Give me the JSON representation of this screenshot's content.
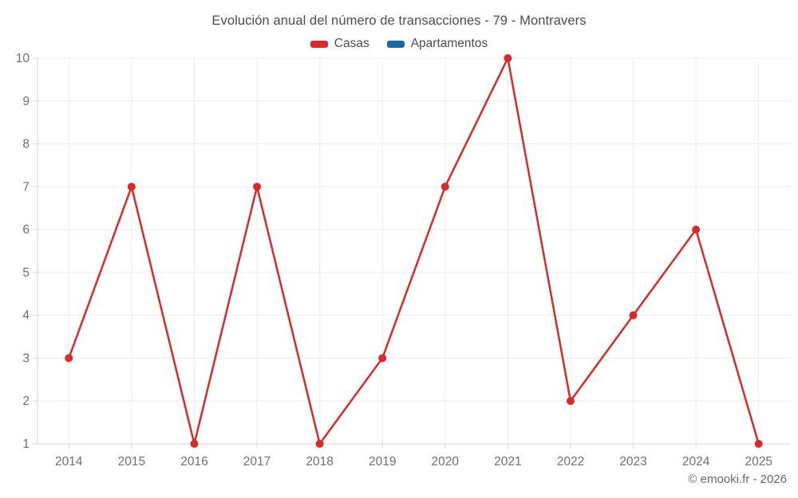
{
  "header": {
    "title": "Evolución anual del número de transacciones - 79 - Montravers"
  },
  "legend": [
    {
      "label": "Casas",
      "color": "#d62b2b"
    },
    {
      "label": "Apartamentos",
      "color": "#1769a0"
    }
  ],
  "footer": {
    "copyright": "© emooki.fr - 2026"
  },
  "colors": {
    "grid": "#ececec",
    "axis": "#d6d6d6",
    "axis_label": "#6d7073",
    "background": "#ffffff"
  },
  "chart_data": {
    "type": "line",
    "title": "Evolución anual del número de transacciones - 79 - Montravers",
    "categories": [
      "2014",
      "2015",
      "2016",
      "2017",
      "2018",
      "2019",
      "2020",
      "2021",
      "2022",
      "2023",
      "2024",
      "2025"
    ],
    "series": [
      {
        "name": "Casas",
        "color": "#d62b2b",
        "values": [
          3,
          7,
          1,
          7,
          1,
          3,
          7,
          10,
          2,
          4,
          6,
          1
        ]
      },
      {
        "name": "Apartamentos",
        "color": "#1769a0",
        "values": []
      }
    ],
    "xlabel": "",
    "ylabel": "",
    "ylim": [
      1,
      10
    ],
    "yticks": [
      1,
      2,
      3,
      4,
      5,
      6,
      7,
      8,
      9,
      10
    ],
    "grid": true,
    "legend_position": "top"
  }
}
